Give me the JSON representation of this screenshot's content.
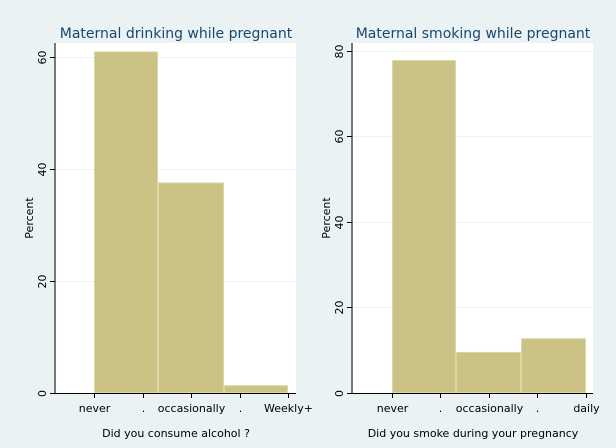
{
  "colors": {
    "background": "#eaf2f3",
    "plot_background": "#ffffff",
    "bar_fill": "#cbc385",
    "bar_edge": "#dcd6a6",
    "title": "#1a476f",
    "gridline": "#eaf2f3"
  },
  "chart_data": [
    {
      "type": "bar",
      "title": "Maternal drinking while pregnant",
      "xlabel": "Did you consume alcohol ?",
      "ylabel": "Percent",
      "ylim": [
        0,
        62
      ],
      "yticks": [
        0,
        20,
        40,
        60
      ],
      "xtick_labels": [
        "never",
        ".",
        "occasionally",
        ".",
        "Weekly+"
      ],
      "categories": [
        "never",
        "occasionally",
        "Weekly+"
      ],
      "values": [
        61,
        37.6,
        1.4
      ],
      "grid": true
    },
    {
      "type": "bar",
      "title": "Maternal smoking while pregnant",
      "xlabel": "Did you smoke during your pregnancy",
      "ylabel": "Percent",
      "ylim": [
        0,
        81.7
      ],
      "yticks": [
        0,
        20,
        40,
        60,
        80
      ],
      "xtick_labels": [
        "never",
        ".",
        "occasionally",
        ".",
        "daily"
      ],
      "categories": [
        "never",
        "occasionally",
        "daily"
      ],
      "values": [
        77.8,
        9.6,
        12.8
      ],
      "grid": true
    }
  ]
}
